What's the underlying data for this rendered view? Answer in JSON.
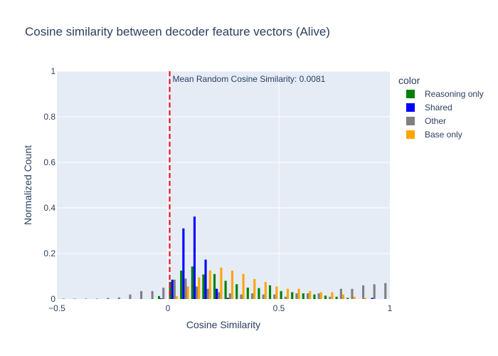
{
  "chart_data": {
    "type": "bar",
    "title": "Cosine similarity between decoder feature vectors (Alive)",
    "xlabel": "Cosine Similarity",
    "ylabel": "Normalized Count",
    "xlim": [
      -0.5,
      1.0
    ],
    "ylim": [
      0,
      1
    ],
    "x_ticks": [
      -0.5,
      0,
      0.5,
      1
    ],
    "x_tick_labels": [
      "−0.5",
      "0",
      "0.5",
      "1"
    ],
    "y_ticks": [
      0,
      0.2,
      0.4,
      0.6,
      0.8,
      1
    ],
    "y_tick_labels": [
      "0",
      "0.2",
      "0.4",
      "0.6",
      "0.8",
      "1"
    ],
    "grid": true,
    "background": "#e5ecf6",
    "legend_title": "color",
    "legend_position": "right",
    "annotation": {
      "text": "Mean Random Cosine Similarity: 0.0081",
      "x": 0.0081,
      "line_color": "#ff0000"
    },
    "bin_width": 0.05,
    "bin_centers": [
      -0.475,
      -0.425,
      -0.375,
      -0.325,
      -0.275,
      -0.225,
      -0.175,
      -0.125,
      -0.075,
      -0.025,
      0.025,
      0.075,
      0.125,
      0.175,
      0.225,
      0.275,
      0.325,
      0.375,
      0.425,
      0.475,
      0.525,
      0.575,
      0.625,
      0.675,
      0.725,
      0.775,
      0.825,
      0.875,
      0.925,
      0.975
    ],
    "series": [
      {
        "name": "Reasoning only",
        "color": "#008000",
        "values": [
          0,
          0,
          0,
          0,
          0,
          0,
          0,
          0,
          0,
          0.013,
          0.075,
          0.125,
          0.143,
          0.108,
          0.11,
          0.08,
          0.065,
          0.05,
          0.048,
          0.06,
          0.035,
          0.03,
          0.025,
          0.02,
          0.015,
          0.01,
          0.005,
          0,
          0,
          0
        ]
      },
      {
        "name": "Shared",
        "color": "#0000ff",
        "values": [
          0,
          0,
          0,
          0,
          0,
          0,
          0,
          0,
          0,
          0.003,
          0.085,
          0.31,
          0.362,
          0.173,
          0.045,
          0.005,
          0,
          0,
          0,
          0,
          0,
          0,
          0,
          0,
          0,
          0,
          0,
          0,
          0.005,
          0
        ]
      },
      {
        "name": "Other",
        "color": "#808080",
        "values": [
          0.002,
          0.002,
          0.002,
          0.002,
          0.005,
          0.007,
          0.02,
          0.035,
          0.035,
          0.05,
          0.085,
          0.09,
          0.055,
          0.045,
          0.03,
          0.025,
          0.02,
          0.025,
          0.02,
          0.02,
          0.01,
          0.025,
          0.025,
          0.025,
          0.01,
          0.045,
          0.045,
          0.06,
          0.065,
          0.07
        ]
      },
      {
        "name": "Base only",
        "color": "#ffa500",
        "values": [
          0,
          0,
          0,
          0,
          0,
          0,
          0,
          0,
          0,
          0,
          0.012,
          0.055,
          0.095,
          0.125,
          0.138,
          0.125,
          0.11,
          0.088,
          0.075,
          0.055,
          0.045,
          0.045,
          0.035,
          0.03,
          0.03,
          0.02,
          0.01,
          0.005,
          0,
          0
        ]
      }
    ]
  }
}
